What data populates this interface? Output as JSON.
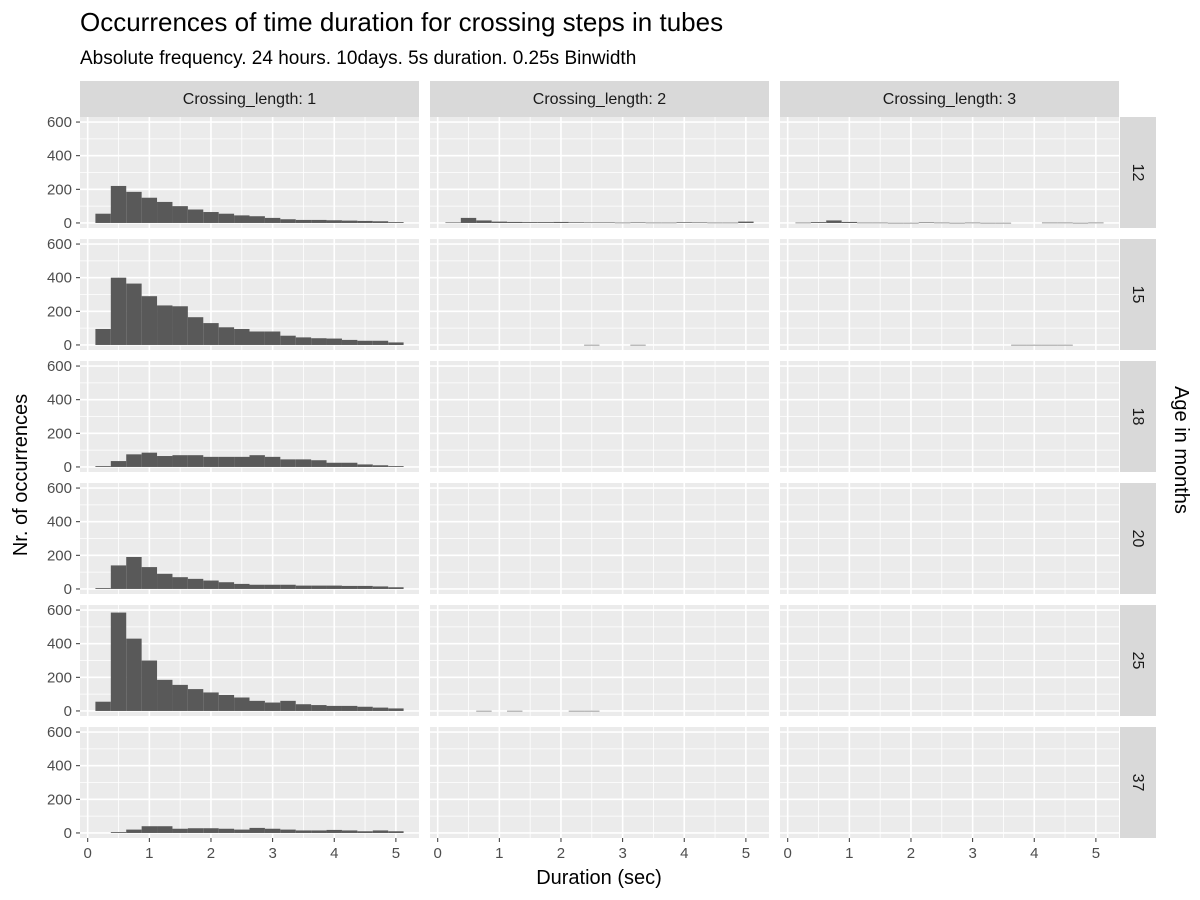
{
  "chart_data": {
    "type": "bar",
    "title": "Occurrences of time duration for crossing steps in tubes",
    "subtitle": "Absolute frequency. 24 hours. 10days. 5s duration. 0.25s Binwidth",
    "xlabel": "Duration (sec)",
    "ylabel": "Nr. of occurrences",
    "facet_row_title": "Age in months",
    "xlim": [
      -0.125,
      5.375
    ],
    "ylim": [
      -30,
      630
    ],
    "x_ticks": [
      "0",
      "1",
      "2",
      "3",
      "4",
      "5"
    ],
    "y_ticks": [
      "0",
      "200",
      "400",
      "600"
    ],
    "grid": true,
    "bin_centers": [
      0.25,
      0.5,
      0.75,
      1.0,
      1.25,
      1.5,
      1.75,
      2.0,
      2.25,
      2.5,
      2.75,
      3.0,
      3.25,
      3.5,
      3.75,
      4.0,
      4.25,
      4.5,
      4.75,
      5.0
    ],
    "bin_width": 0.25,
    "bar_color": "#595959",
    "panel_background": "#ebebeb",
    "strip_background": "#d9d9d9",
    "col_labels": [
      "Crossing_length: 1",
      "Crossing_length: 2",
      "Crossing_length: 3"
    ],
    "row_labels": [
      "12",
      "15",
      "18",
      "20",
      "25",
      "37"
    ],
    "panels": [
      [
        [
          55,
          220,
          185,
          150,
          125,
          100,
          80,
          65,
          55,
          45,
          40,
          30,
          22,
          18,
          18,
          16,
          14,
          12,
          10,
          5
        ],
        [
          95,
          400,
          365,
          290,
          235,
          230,
          165,
          130,
          105,
          95,
          80,
          80,
          55,
          45,
          40,
          38,
          30,
          25,
          25,
          15
        ],
        [
          5,
          35,
          75,
          85,
          65,
          70,
          70,
          60,
          60,
          60,
          70,
          60,
          45,
          45,
          40,
          25,
          25,
          15,
          10,
          5
        ],
        [
          5,
          140,
          190,
          130,
          90,
          70,
          60,
          50,
          40,
          30,
          25,
          25,
          25,
          20,
          20,
          20,
          18,
          18,
          15,
          10
        ],
        [
          55,
          585,
          430,
          300,
          185,
          155,
          130,
          110,
          95,
          80,
          60,
          50,
          60,
          40,
          35,
          30,
          30,
          25,
          20,
          15
        ],
        [
          0,
          5,
          20,
          40,
          40,
          25,
          28,
          28,
          25,
          20,
          30,
          25,
          20,
          15,
          15,
          18,
          15,
          10,
          15,
          10
        ]
      ],
      [
        [
          3,
          30,
          15,
          8,
          6,
          5,
          5,
          6,
          4,
          3,
          3,
          2,
          3,
          2,
          2,
          4,
          3,
          2,
          2,
          8
        ],
        [
          0,
          0,
          0,
          0,
          0,
          0,
          0,
          0,
          0,
          1,
          0,
          0,
          1,
          0,
          0,
          0,
          0,
          0,
          0,
          0
        ],
        [
          0,
          0,
          0,
          0,
          0,
          0,
          0,
          0,
          0,
          0,
          0,
          0,
          0,
          0,
          0,
          0,
          0,
          0,
          0,
          0
        ],
        [
          0,
          0,
          0,
          0,
          0,
          0,
          0,
          0,
          0,
          0,
          0,
          0,
          0,
          0,
          0,
          0,
          0,
          0,
          0,
          0
        ],
        [
          0,
          0,
          1,
          0,
          1,
          0,
          0,
          0,
          1,
          1,
          0,
          0,
          0,
          0,
          0,
          0,
          0,
          0,
          0,
          0
        ],
        [
          0,
          0,
          0,
          0,
          0,
          0,
          0,
          0,
          0,
          0,
          0,
          0,
          0,
          0,
          0,
          0,
          0,
          0,
          0,
          0
        ]
      ],
      [
        [
          2,
          5,
          15,
          6,
          2,
          2,
          1,
          1,
          3,
          2,
          1,
          2,
          1,
          1,
          0,
          0,
          2,
          2,
          1,
          2
        ],
        [
          0,
          0,
          0,
          0,
          0,
          0,
          0,
          0,
          0,
          0,
          0,
          0,
          0,
          0,
          1,
          1,
          1,
          1,
          0,
          0
        ],
        [
          0,
          0,
          0,
          0,
          0,
          0,
          0,
          0,
          0,
          0,
          0,
          0,
          0,
          0,
          0,
          0,
          0,
          0,
          0,
          0
        ],
        [
          0,
          0,
          0,
          0,
          0,
          0,
          0,
          0,
          0,
          0,
          0,
          0,
          0,
          0,
          0,
          0,
          0,
          0,
          0,
          0
        ],
        [
          0,
          0,
          0,
          0,
          0,
          0,
          0,
          0,
          0,
          0,
          0,
          0,
          0,
          0,
          0,
          0,
          0,
          0,
          0,
          0
        ],
        [
          0,
          0,
          0,
          0,
          0,
          0,
          0,
          0,
          0,
          0,
          0,
          0,
          0,
          0,
          0,
          0,
          0,
          0,
          0,
          0
        ]
      ]
    ]
  }
}
